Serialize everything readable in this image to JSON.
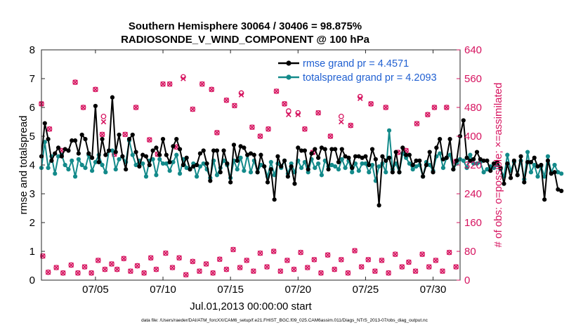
{
  "chart_data": {
    "type": "line",
    "title_line1": "Southern Hemisphere 30064 / 30406 = 98.875%",
    "title_line2": "RADIOSONDE_V_WIND_COMPONENT @ 100 hPa",
    "xlabel": "Jul.01,2013 00:00:00 start",
    "ylabel_left": "rmse and totalspread",
    "ylabel_right": "# of obs: o=possible; ×=assimilated",
    "footer": "data file: /Users/raeder/DAI/ATM_forcXX/CAM6_setup/f.e21.FHIST_BGC.f09_025.CAM6assim.011/Diags_NTrS_2013-07/obs_diag_output.nc",
    "xlim": [
      1,
      32
    ],
    "ylim_left": [
      0,
      8
    ],
    "ylim_right": [
      0,
      640
    ],
    "x_ticks": [
      {
        "x": 5,
        "label": "07/05"
      },
      {
        "x": 10,
        "label": "07/10"
      },
      {
        "x": 15,
        "label": "07/15"
      },
      {
        "x": 20,
        "label": "07/20"
      },
      {
        "x": 25,
        "label": "07/25"
      },
      {
        "x": 30,
        "label": "07/30"
      }
    ],
    "y_ticks_left": [
      "0",
      "1",
      "2",
      "3",
      "4",
      "5",
      "6",
      "7",
      "8"
    ],
    "y_ticks_right": [
      "0",
      "80",
      "160",
      "240",
      "320",
      "400",
      "480",
      "560",
      "640"
    ],
    "colors": {
      "rmse": "#000000",
      "spread": "#138a8a",
      "obs": "#d6135f",
      "legend_text": "#1f5fd1",
      "axis_right": "#d6135f"
    },
    "legend": {
      "rmse_label": "rmse grand pr = 4.4571",
      "spread_label": "totalspread grand pr = 4.2093"
    },
    "series": [
      {
        "name": "rmse",
        "x_start": 1.0,
        "x_step": 0.25,
        "values": [
          4.3,
          5.45,
          4.9,
          4.15,
          4.4,
          4.6,
          4.3,
          4.55,
          4.5,
          4.85,
          4.85,
          4.4,
          5.05,
          4.9,
          4.4,
          4.25,
          6.05,
          4.1,
          4.9,
          4.35,
          4.5,
          6.35,
          4.45,
          5.05,
          4.3,
          3.85,
          4.9,
          5.05,
          4.45,
          3.95,
          4.35,
          4.3,
          4.0,
          4.5,
          4.6,
          4.35,
          4.9,
          4.35,
          4.1,
          4.65,
          4.9,
          4.55,
          4.0,
          4.25,
          3.85,
          3.95,
          4.0,
          4.4,
          4.5,
          4.05,
          3.45,
          4.5,
          4.5,
          3.75,
          4.5,
          4.05,
          3.4,
          4.7,
          4.15,
          4.65,
          4.6,
          4.35,
          4.4,
          4.35,
          3.75,
          4.35,
          3.95,
          3.4,
          3.85,
          2.8,
          4.3,
          3.95,
          4.15,
          3.6,
          3.95,
          3.35,
          4.6,
          4.5,
          4.5,
          3.85,
          4.4,
          4.55,
          4.25,
          4.6,
          4.55,
          3.85,
          4.55,
          4.55,
          4.1,
          4.55,
          4.3,
          4.25,
          3.9,
          4.3,
          4.3,
          4.25,
          4.3,
          4.0,
          4.55,
          4.2,
          2.6,
          4.3,
          4.15,
          4.25,
          3.75,
          4.45,
          3.75,
          4.6,
          4.35,
          4.35,
          4.0,
          4.15,
          4.15,
          3.6,
          4.0,
          4.45,
          3.75,
          4.6,
          4.9,
          4.2,
          4.25,
          4.9,
          3.85,
          4.15,
          5.0,
          5.55,
          4.25,
          4.15,
          4.2,
          4.45,
          4.2,
          4.15,
          4.15,
          3.8,
          4.05,
          4.1,
          3.9,
          3.35,
          4.05,
          3.55,
          4.15,
          3.65,
          4.3,
          3.4,
          4.1,
          4.1,
          4.25,
          3.95,
          4.0,
          2.8,
          4.15,
          3.7,
          3.75,
          3.15,
          3.1
        ]
      },
      {
        "name": "totalspread",
        "x_start": 1.0,
        "x_step": 0.25,
        "values": [
          3.9,
          4.8,
          3.9,
          4.3,
          3.7,
          4.3,
          4.35,
          4.0,
          3.85,
          4.15,
          3.6,
          4.2,
          4.0,
          3.9,
          4.35,
          3.8,
          4.1,
          4.35,
          4.0,
          3.75,
          4.5,
          4.5,
          3.85,
          4.2,
          4.3,
          4.1,
          4.85,
          4.35,
          4.0,
          4.15,
          4.05,
          3.6,
          4.15,
          4.2,
          3.65,
          4.2,
          4.05,
          4.05,
          3.8,
          4.1,
          4.35,
          3.7,
          4.2,
          3.9,
          3.85,
          4.05,
          3.6,
          3.95,
          4.05,
          3.85,
          3.55,
          4.15,
          3.65,
          3.9,
          4.15,
          4.0,
          3.55,
          4.15,
          3.85,
          4.25,
          3.8,
          4.35,
          3.75,
          4.15,
          3.75,
          4.0,
          3.95,
          3.6,
          4.1,
          3.65,
          4.05,
          3.9,
          4.15,
          3.7,
          4.05,
          3.75,
          4.15,
          3.9,
          4.1,
          3.75,
          4.2,
          3.9,
          4.05,
          3.65,
          4.15,
          3.95,
          4.0,
          3.95,
          3.85,
          4.2,
          3.9,
          4.15,
          3.75,
          4.05,
          3.8,
          4.05,
          4.05,
          3.75,
          4.0,
          3.45,
          3.95,
          4.05,
          3.75,
          5.2,
          3.85,
          4.05,
          3.75,
          4.4,
          4.25,
          4.05,
          3.85,
          3.95,
          4.0,
          3.6,
          4.1,
          4.0,
          3.8,
          4.3,
          4.4,
          3.9,
          4.25,
          4.35,
          3.85,
          4.05,
          4.2,
          4.15,
          3.9,
          4.35,
          4.05,
          4.05,
          4.1,
          3.75,
          3.85,
          3.95,
          3.9,
          4.0,
          3.85,
          3.6,
          4.35,
          3.8,
          4.1,
          3.65,
          4.15,
          3.5,
          4.45,
          3.75,
          4.0,
          3.6,
          3.95,
          3.6,
          4.3,
          3.75,
          4.0,
          3.75,
          3.7
        ]
      },
      {
        "name": "obs_possible",
        "points": [
          [
            1.0,
            490
          ],
          [
            1.6,
            420
          ],
          [
            2.5,
            360
          ],
          [
            3.5,
            550
          ],
          [
            4.1,
            480
          ],
          [
            5.0,
            530
          ],
          [
            5.5,
            405
          ],
          [
            5.6,
            455
          ],
          [
            6.4,
            350
          ],
          [
            7.2,
            405
          ],
          [
            8.0,
            480
          ],
          [
            9.0,
            390
          ],
          [
            9.6,
            350
          ],
          [
            10.0,
            545
          ],
          [
            10.5,
            545
          ],
          [
            11.0,
            370
          ],
          [
            11.5,
            565
          ],
          [
            12.2,
            475
          ],
          [
            12.9,
            545
          ],
          [
            13.6,
            530
          ],
          [
            14.0,
            410
          ],
          [
            14.7,
            500
          ],
          [
            15.3,
            485
          ],
          [
            15.8,
            520
          ],
          [
            16.6,
            425
          ],
          [
            17.2,
            400
          ],
          [
            17.8,
            420
          ],
          [
            18.4,
            525
          ],
          [
            19.0,
            490
          ],
          [
            19.3,
            470
          ],
          [
            20.0,
            465
          ],
          [
            20.5,
            420
          ],
          [
            21.1,
            355
          ],
          [
            21.5,
            465
          ],
          [
            22.4,
            400
          ],
          [
            23.2,
            455
          ],
          [
            23.9,
            430
          ],
          [
            24.6,
            510
          ],
          [
            25.4,
            490
          ],
          [
            26.5,
            480
          ],
          [
            27.4,
            355
          ],
          [
            28.0,
            360
          ],
          [
            28.8,
            435
          ],
          [
            29.6,
            460
          ],
          [
            30.1,
            480
          ],
          [
            31.0,
            480
          ],
          [
            31.7,
            330
          ]
        ]
      },
      {
        "name": "obs_assimilated",
        "points": [
          [
            1.0,
            490
          ],
          [
            1.6,
            420
          ],
          [
            2.5,
            360
          ],
          [
            3.5,
            550
          ],
          [
            4.1,
            480
          ],
          [
            5.0,
            530
          ],
          [
            5.5,
            405
          ],
          [
            5.6,
            440
          ],
          [
            6.4,
            350
          ],
          [
            7.2,
            405
          ],
          [
            8.0,
            480
          ],
          [
            9.0,
            390
          ],
          [
            9.6,
            350
          ],
          [
            10.0,
            545
          ],
          [
            10.5,
            545
          ],
          [
            11.0,
            370
          ],
          [
            11.5,
            560
          ],
          [
            12.2,
            475
          ],
          [
            12.9,
            545
          ],
          [
            13.6,
            530
          ],
          [
            14.0,
            410
          ],
          [
            14.7,
            500
          ],
          [
            15.3,
            485
          ],
          [
            15.8,
            515
          ],
          [
            16.6,
            425
          ],
          [
            17.2,
            400
          ],
          [
            17.8,
            420
          ],
          [
            18.4,
            525
          ],
          [
            19.0,
            490
          ],
          [
            19.3,
            460
          ],
          [
            20.0,
            460
          ],
          [
            20.5,
            420
          ],
          [
            21.1,
            355
          ],
          [
            21.5,
            465
          ],
          [
            22.4,
            400
          ],
          [
            23.2,
            440
          ],
          [
            23.9,
            430
          ],
          [
            24.6,
            505
          ],
          [
            25.4,
            490
          ],
          [
            26.5,
            480
          ],
          [
            27.4,
            355
          ],
          [
            28.0,
            360
          ],
          [
            28.8,
            435
          ],
          [
            29.6,
            460
          ],
          [
            30.1,
            480
          ],
          [
            31.0,
            480
          ],
          [
            31.7,
            330
          ]
        ]
      },
      {
        "name": "obs_low_possible",
        "points": [
          [
            1.1,
            67
          ],
          [
            1.5,
            22
          ],
          [
            2.1,
            35
          ],
          [
            2.6,
            20
          ],
          [
            3.2,
            42
          ],
          [
            3.7,
            20
          ],
          [
            4.2,
            37
          ],
          [
            4.7,
            20
          ],
          [
            5.2,
            55
          ],
          [
            5.7,
            30
          ],
          [
            6.2,
            45
          ],
          [
            6.6,
            30
          ],
          [
            7.1,
            60
          ],
          [
            7.6,
            25
          ],
          [
            8.1,
            40
          ],
          [
            8.6,
            20
          ],
          [
            9.1,
            62
          ],
          [
            9.5,
            30
          ],
          [
            10.2,
            75
          ],
          [
            10.7,
            35
          ],
          [
            11.2,
            62
          ],
          [
            11.7,
            15
          ],
          [
            12.2,
            52
          ],
          [
            12.7,
            25
          ],
          [
            13.2,
            45
          ],
          [
            13.7,
            20
          ],
          [
            14.2,
            58
          ],
          [
            14.7,
            30
          ],
          [
            15.2,
            85
          ],
          [
            15.7,
            35
          ],
          [
            16.2,
            55
          ],
          [
            16.7,
            25
          ],
          [
            17.2,
            75
          ],
          [
            17.7,
            37
          ],
          [
            18.2,
            80
          ],
          [
            18.7,
            25
          ],
          [
            19.2,
            55
          ],
          [
            19.7,
            30
          ],
          [
            20.2,
            77
          ],
          [
            20.7,
            35
          ],
          [
            21.2,
            57
          ],
          [
            21.7,
            20
          ],
          [
            22.2,
            70
          ],
          [
            22.7,
            30
          ],
          [
            23.2,
            57
          ],
          [
            23.7,
            20
          ],
          [
            24.2,
            82
          ],
          [
            24.7,
            37
          ],
          [
            25.2,
            57
          ],
          [
            25.7,
            25
          ],
          [
            26.2,
            55
          ],
          [
            26.7,
            20
          ],
          [
            27.2,
            72
          ],
          [
            27.7,
            37
          ],
          [
            28.2,
            50
          ],
          [
            28.7,
            25
          ],
          [
            29.2,
            72
          ],
          [
            29.7,
            37
          ],
          [
            30.2,
            55
          ],
          [
            30.7,
            25
          ],
          [
            31.2,
            77
          ],
          [
            31.7,
            37
          ]
        ]
      }
    ]
  }
}
